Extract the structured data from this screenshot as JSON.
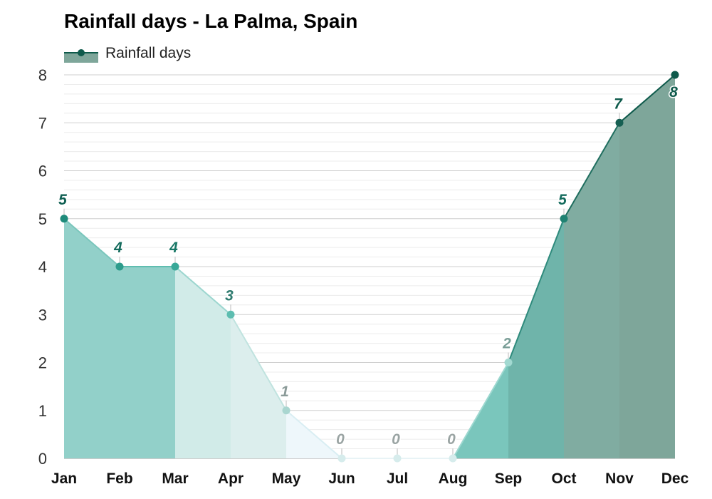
{
  "chart_data": {
    "type": "area",
    "title": "Rainfall days - La Palma, Spain",
    "categories": [
      "Jan",
      "Feb",
      "Mar",
      "Apr",
      "May",
      "Jun",
      "Jul",
      "Aug",
      "Sep",
      "Oct",
      "Nov",
      "Dec"
    ],
    "series": [
      {
        "name": "Rainfall days",
        "values": [
          5,
          4,
          4,
          3,
          1,
          0,
          0,
          0,
          2,
          5,
          7,
          8
        ]
      }
    ],
    "data_labels": [
      "5",
      "4",
      "4",
      "3",
      "1",
      "0",
      "0",
      "0",
      "2",
      "5",
      "7",
      "8"
    ],
    "y_ticks": [
      "0",
      "1",
      "2",
      "3",
      "4",
      "5",
      "6",
      "7",
      "8"
    ],
    "ylim": [
      0,
      8
    ],
    "xlabel": "",
    "ylabel": "",
    "grid": true,
    "legend_position": "top-left",
    "colors": {
      "line_dark": "#0e5a4b",
      "dec_fill": "#7ea69a",
      "nov_fill": "#80aca1",
      "oct_fill": "#6fb4aa",
      "sep_fill": "#7ac6bc",
      "jan_fill": "#92d0c9",
      "feb_fill": "#92d0c9",
      "mar_fill": "#d1ebe8",
      "apr_fill": "#dceeed",
      "may_fill": "#eef7fb"
    }
  }
}
